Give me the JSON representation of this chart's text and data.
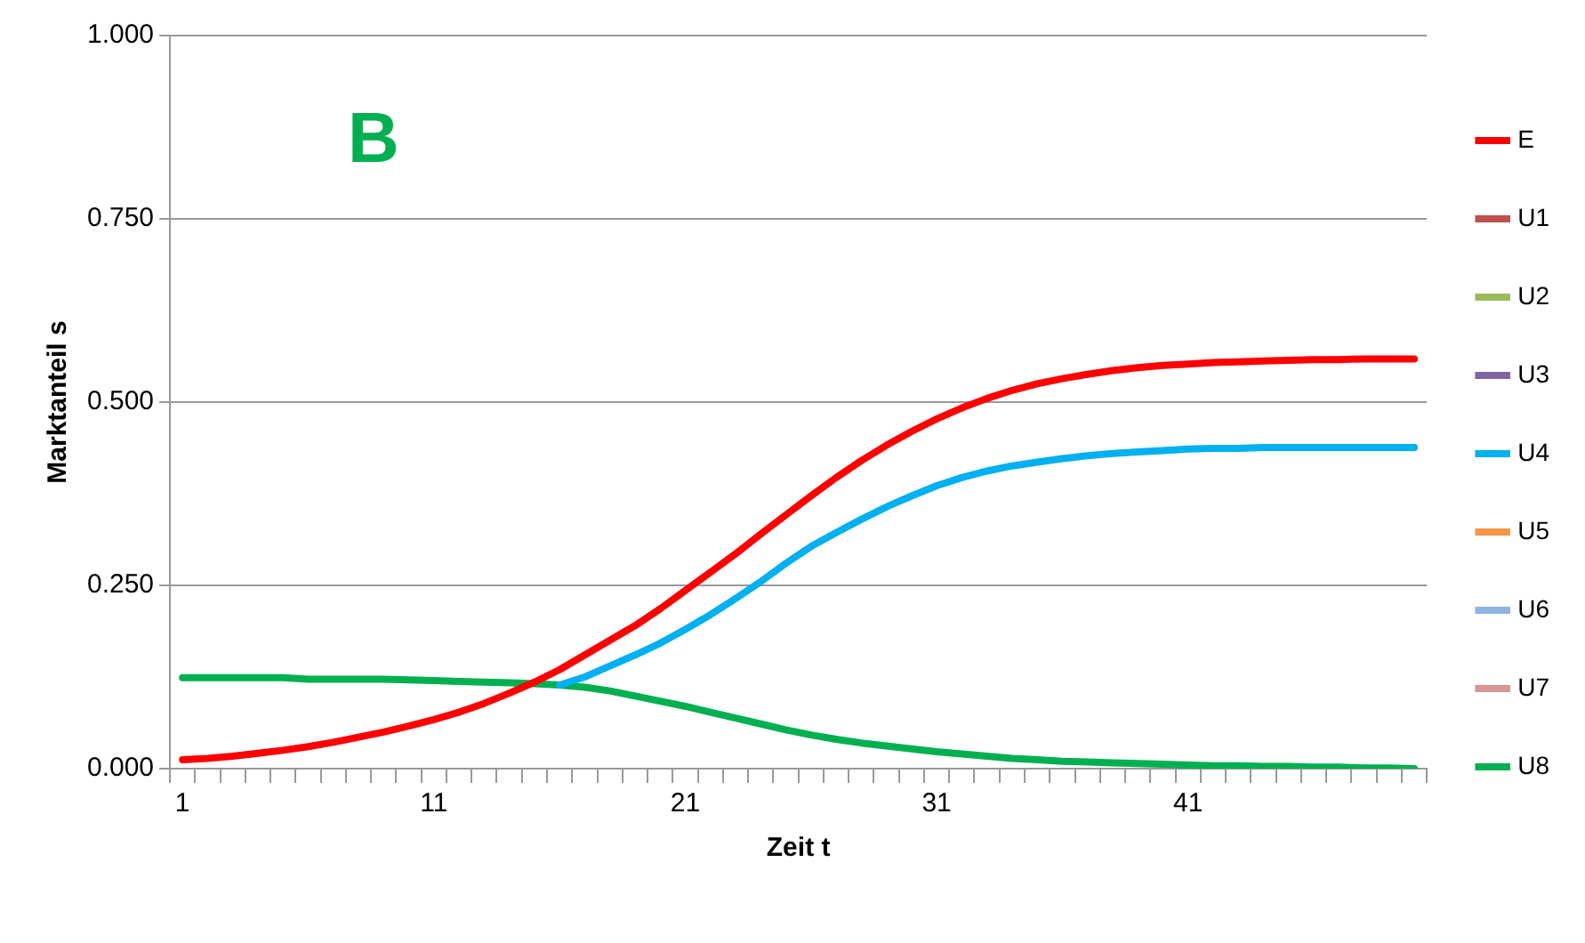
{
  "chart_data": {
    "type": "line",
    "xlabel": "Zeit t",
    "ylabel": "Marktanteil s",
    "annotations": [
      "B"
    ],
    "categories": [
      "1",
      null,
      null,
      null,
      null,
      null,
      null,
      null,
      null,
      null,
      "11",
      null,
      null,
      null,
      null,
      null,
      null,
      null,
      null,
      null,
      "21",
      null,
      null,
      null,
      null,
      null,
      null,
      null,
      null,
      null,
      "31",
      null,
      null,
      null,
      null,
      null,
      null,
      null,
      null,
      null,
      "41",
      null,
      null,
      null,
      null,
      null,
      null,
      null,
      null,
      null
    ],
    "ylim": [
      0,
      1
    ],
    "yticks": [
      {
        "value": 0,
        "label": "0.000"
      },
      {
        "value": 0.25,
        "label": "0.250"
      },
      {
        "value": 0.5,
        "label": "0.500"
      },
      {
        "value": 0.75,
        "label": "0.750"
      },
      {
        "value": 1,
        "label": "1.000"
      }
    ],
    "grid": "y",
    "legend": "right",
    "marker": "none",
    "line_style": "solid",
    "series": [
      {
        "name": "E",
        "color": "#ff0000",
        "values": [
          0.012,
          0.014,
          0.017,
          0.021,
          0.025,
          0.03,
          0.036,
          0.043,
          0.05,
          0.058,
          0.067,
          0.077,
          0.089,
          0.103,
          0.118,
          0.135,
          0.155,
          0.175,
          0.195,
          0.218,
          0.243,
          0.268,
          0.293,
          0.32,
          0.346,
          0.372,
          0.397,
          0.42,
          0.441,
          0.46,
          0.477,
          0.492,
          0.505,
          0.516,
          0.525,
          0.532,
          0.538,
          0.543,
          0.547,
          0.55,
          0.552,
          0.554,
          0.555,
          0.556,
          0.557,
          0.558,
          0.558,
          0.559,
          0.559,
          0.559
        ]
      },
      {
        "name": "U1",
        "color": "#c0504d",
        "values": [
          null,
          null,
          null,
          null,
          null,
          null,
          null,
          null,
          null,
          null,
          null,
          null,
          null,
          null,
          null,
          null,
          null,
          null,
          null,
          null,
          null,
          null,
          null,
          null,
          null,
          null,
          null,
          null,
          null,
          null,
          null,
          null,
          null,
          null,
          null,
          null,
          null,
          null,
          null,
          null,
          null,
          null,
          null,
          null,
          null,
          null,
          null,
          null,
          null,
          null
        ]
      },
      {
        "name": "U2",
        "color": "#9bbb59",
        "values": [
          null,
          null,
          null,
          null,
          null,
          null,
          null,
          null,
          null,
          null,
          null,
          null,
          null,
          null,
          null,
          null,
          null,
          null,
          null,
          null,
          null,
          null,
          null,
          null,
          null,
          null,
          null,
          null,
          null,
          null,
          null,
          null,
          null,
          null,
          null,
          null,
          null,
          null,
          null,
          null,
          null,
          null,
          null,
          null,
          null,
          null,
          null,
          null,
          null,
          null
        ]
      },
      {
        "name": "U3",
        "color": "#8064a2",
        "values": [
          null,
          null,
          null,
          null,
          null,
          null,
          null,
          null,
          null,
          null,
          null,
          null,
          null,
          null,
          null,
          null,
          null,
          null,
          null,
          null,
          null,
          null,
          null,
          null,
          null,
          null,
          null,
          null,
          null,
          null,
          null,
          null,
          null,
          null,
          null,
          null,
          null,
          null,
          null,
          null,
          null,
          null,
          null,
          null,
          null,
          null,
          null,
          null,
          null,
          null
        ]
      },
      {
        "name": "U4",
        "color": "#00b0f0",
        "values": [
          null,
          null,
          null,
          null,
          null,
          null,
          null,
          null,
          null,
          null,
          null,
          null,
          null,
          null,
          null,
          0.114,
          0.125,
          0.14,
          0.155,
          0.171,
          0.19,
          0.21,
          0.232,
          0.255,
          0.28,
          0.303,
          0.322,
          0.34,
          0.357,
          0.372,
          0.386,
          0.397,
          0.406,
          0.413,
          0.418,
          0.423,
          0.427,
          0.43,
          0.432,
          0.434,
          0.436,
          0.437,
          0.437,
          0.438,
          0.438,
          0.438,
          0.438,
          0.438,
          0.438,
          0.438
        ]
      },
      {
        "name": "U5",
        "color": "#f79646",
        "values": [
          null,
          null,
          null,
          null,
          null,
          null,
          null,
          null,
          null,
          null,
          null,
          null,
          null,
          null,
          null,
          null,
          null,
          null,
          null,
          null,
          null,
          null,
          null,
          null,
          null,
          null,
          null,
          null,
          null,
          null,
          null,
          null,
          null,
          null,
          null,
          null,
          null,
          null,
          null,
          null,
          null,
          null,
          null,
          null,
          null,
          null,
          null,
          null,
          null,
          null
        ]
      },
      {
        "name": "U6",
        "color": "#8eb4e3",
        "values": [
          null,
          null,
          null,
          null,
          null,
          null,
          null,
          null,
          null,
          null,
          null,
          null,
          null,
          null,
          null,
          null,
          null,
          null,
          null,
          null,
          null,
          null,
          null,
          null,
          null,
          null,
          null,
          null,
          null,
          null,
          null,
          null,
          null,
          null,
          null,
          null,
          null,
          null,
          null,
          null,
          null,
          null,
          null,
          null,
          null,
          null,
          null,
          null,
          null,
          null
        ]
      },
      {
        "name": "U7",
        "color": "#d99694",
        "values": [
          null,
          null,
          null,
          null,
          null,
          null,
          null,
          null,
          null,
          null,
          null,
          null,
          null,
          null,
          null,
          null,
          null,
          null,
          null,
          null,
          null,
          null,
          null,
          null,
          null,
          null,
          null,
          null,
          null,
          null,
          null,
          null,
          null,
          null,
          null,
          null,
          null,
          null,
          null,
          null,
          null,
          null,
          null,
          null,
          null,
          null,
          null,
          null,
          null,
          null
        ]
      },
      {
        "name": "U8",
        "color": "#00b050",
        "values": [
          0.124,
          0.124,
          0.124,
          0.124,
          0.124,
          0.122,
          0.122,
          0.122,
          0.122,
          0.121,
          0.12,
          0.119,
          0.118,
          0.117,
          0.116,
          0.114,
          0.111,
          0.106,
          0.099,
          0.092,
          0.085,
          0.077,
          0.069,
          0.061,
          0.053,
          0.046,
          0.04,
          0.035,
          0.031,
          0.027,
          0.023,
          0.02,
          0.017,
          0.014,
          0.012,
          0.01,
          0.009,
          0.008,
          0.007,
          0.006,
          0.005,
          0.004,
          0.004,
          0.003,
          0.003,
          0.002,
          0.002,
          0.001,
          0.001,
          0.0
        ]
      }
    ]
  }
}
